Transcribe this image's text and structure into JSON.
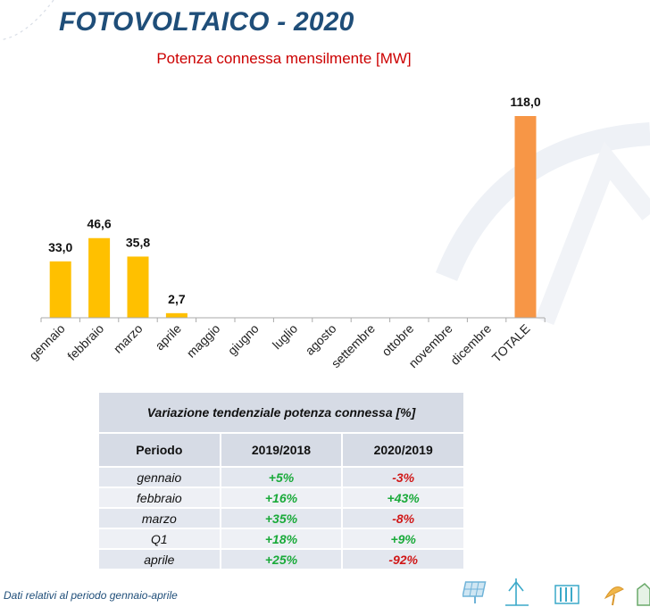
{
  "title": "FOTOVOLTAICO - 2020",
  "chart_data": {
    "type": "bar",
    "title": "Potenza connessa mensilmente [MW]",
    "categories": [
      "gennaio",
      "febbraio",
      "marzo",
      "aprile",
      "maggio",
      "giugno",
      "luglio",
      "agosto",
      "settembre",
      "ottobre",
      "novembre",
      "dicembre",
      "TOTALE"
    ],
    "values": [
      33.0,
      46.6,
      35.8,
      2.7,
      null,
      null,
      null,
      null,
      null,
      null,
      null,
      null,
      118.0
    ],
    "value_labels": [
      "33,0",
      "46,6",
      "35,8",
      "2,7",
      "",
      "",
      "",
      "",
      "",
      "",
      "",
      "",
      "118,0"
    ],
    "colors": {
      "months": "#ffc000",
      "total": "#f79646"
    },
    "ylim": [
      0,
      118
    ],
    "grid": false,
    "xlabel": "",
    "ylabel": ""
  },
  "table": {
    "caption": "Variazione tendenziale potenza connessa [%]",
    "headers": [
      "Periodo",
      "2019/2018",
      "2020/2019"
    ],
    "rows": [
      {
        "period": "gennaio",
        "v1": "+5%",
        "v2": "-3%"
      },
      {
        "period": "febbraio",
        "v1": "+16%",
        "v2": "+43%"
      },
      {
        "period": "marzo",
        "v1": "+35%",
        "v2": "-8%"
      },
      {
        "period": "Q1",
        "v1": "+18%",
        "v2": "+9%"
      },
      {
        "period": "aprile",
        "v1": "+25%",
        "v2": "-92%"
      }
    ],
    "colors": {
      "positive": "#1aaa3a",
      "negative": "#d01818"
    }
  },
  "footnote": "Dati relativi al periodo gennaio-aprile",
  "footer_icons": [
    "solar-panel-icon",
    "wind-turbine-icon",
    "hydro-dam-icon",
    "satellite-dish-icon",
    "building-icon"
  ]
}
